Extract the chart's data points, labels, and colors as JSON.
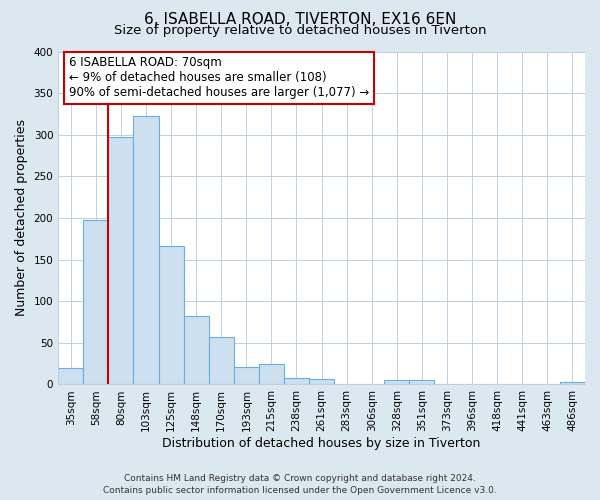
{
  "title": "6, ISABELLA ROAD, TIVERTON, EX16 6EN",
  "subtitle": "Size of property relative to detached houses in Tiverton",
  "xlabel": "Distribution of detached houses by size in Tiverton",
  "ylabel": "Number of detached properties",
  "bin_labels": [
    "35sqm",
    "58sqm",
    "80sqm",
    "103sqm",
    "125sqm",
    "148sqm",
    "170sqm",
    "193sqm",
    "215sqm",
    "238sqm",
    "261sqm",
    "283sqm",
    "306sqm",
    "328sqm",
    "351sqm",
    "373sqm",
    "396sqm",
    "418sqm",
    "441sqm",
    "463sqm",
    "486sqm"
  ],
  "bar_heights": [
    20,
    197,
    297,
    323,
    166,
    82,
    57,
    21,
    24,
    8,
    6,
    0,
    0,
    5,
    5,
    0,
    0,
    0,
    0,
    0,
    3
  ],
  "bar_color": "#cce0f0",
  "bar_edge_color": "#6aade0",
  "vline_color": "#cc0000",
  "vline_x": 1.5,
  "annotation_title": "6 ISABELLA ROAD: 70sqm",
  "annotation_line1": "← 9% of detached houses are smaller (108)",
  "annotation_line2": "90% of semi-detached houses are larger (1,077) →",
  "annotation_box_color": "#ffffff",
  "annotation_box_edge": "#cc0000",
  "ylim": [
    0,
    400
  ],
  "yticks": [
    0,
    50,
    100,
    150,
    200,
    250,
    300,
    350,
    400
  ],
  "footer_line1": "Contains HM Land Registry data © Crown copyright and database right 2024.",
  "footer_line2": "Contains public sector information licensed under the Open Government Licence v3.0.",
  "background_color": "#dce8f0",
  "plot_background": "#ffffff",
  "grid_color": "#c0d0e0",
  "title_fontsize": 11,
  "subtitle_fontsize": 9.5,
  "axis_label_fontsize": 9,
  "tick_fontsize": 7.5,
  "footer_fontsize": 6.5,
  "annotation_fontsize": 8.5
}
